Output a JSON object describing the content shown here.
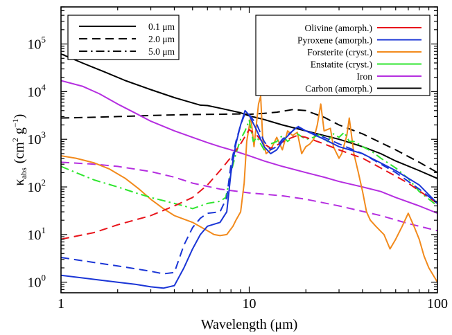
{
  "chart_data": {
    "type": "line",
    "xlabel": "Wavelength (μm)",
    "ylabel_main": "κ",
    "ylabel_sub": "abs",
    "ylabel_unit_pre": "(cm",
    "ylabel_unit_exp1": "2",
    "ylabel_unit_mid": " g",
    "ylabel_unit_exp2": "−1",
    "ylabel_unit_post": ")",
    "x_scale": "log",
    "y_scale": "log",
    "xlim": [
      1,
      100
    ],
    "ylim": [
      0.6,
      600000
    ],
    "x_ticks": [
      {
        "value": 1,
        "label": "1"
      },
      {
        "value": 10,
        "label": "10"
      },
      {
        "value": 100,
        "label": "100"
      }
    ],
    "y_ticks": [
      {
        "value": 1,
        "base": "10",
        "exp": "0"
      },
      {
        "value": 10,
        "base": "10",
        "exp": "1"
      },
      {
        "value": 100,
        "base": "10",
        "exp": "2"
      },
      {
        "value": 1000,
        "base": "10",
        "exp": "3"
      },
      {
        "value": 10000,
        "base": "10",
        "exp": "4"
      },
      {
        "value": 100000,
        "base": "10",
        "exp": "5"
      }
    ],
    "size_legend": [
      {
        "label": "0.1 μm",
        "dash": "solid"
      },
      {
        "label": "2.0 μm",
        "dash": "dashed"
      },
      {
        "label": "5.0 μm",
        "dash": "dashdot"
      }
    ],
    "material_legend": [
      {
        "label": "Olivine (amorph.)",
        "color": "#e8141b"
      },
      {
        "label": "Pyroxene (amorph.)",
        "color": "#1a35d6"
      },
      {
        "label": "Forsterite (cryst.)",
        "color": "#f28a1c"
      },
      {
        "label": "Enstatite (cryst.)",
        "color": "#2ee52e"
      },
      {
        "label": "Iron",
        "color": "#b52ee0"
      },
      {
        "label": "Carbon (amorph.)",
        "color": "#000000"
      }
    ],
    "series": [
      {
        "material": "Carbon (amorph.)",
        "size": "0.1 μm",
        "color": "#000000",
        "dash": "solid",
        "points": [
          [
            1,
            62000
          ],
          [
            1.3,
            40000
          ],
          [
            1.7,
            26000
          ],
          [
            2.2,
            17000
          ],
          [
            3,
            11000
          ],
          [
            4,
            7500
          ],
          [
            5,
            5800
          ],
          [
            5.5,
            5200
          ],
          [
            6,
            5100
          ],
          [
            7,
            4500
          ],
          [
            8,
            4000
          ],
          [
            9,
            3600
          ],
          [
            10,
            3100
          ],
          [
            12,
            2600
          ],
          [
            15,
            2000
          ],
          [
            20,
            1500
          ],
          [
            25,
            1200
          ],
          [
            30,
            1000
          ],
          [
            40,
            700
          ],
          [
            50,
            500
          ],
          [
            60,
            350
          ],
          [
            80,
            220
          ],
          [
            100,
            150
          ]
        ]
      },
      {
        "material": "Carbon (amorph.)",
        "size": "2.0 μm",
        "color": "#000000",
        "dash": "dashed",
        "points": [
          [
            1,
            2800
          ],
          [
            1.5,
            2900
          ],
          [
            2,
            3000
          ],
          [
            3,
            3150
          ],
          [
            4,
            3250
          ],
          [
            5,
            3300
          ],
          [
            7,
            3350
          ],
          [
            9,
            3400
          ],
          [
            10,
            3350
          ],
          [
            12,
            3500
          ],
          [
            14,
            3700
          ],
          [
            17,
            4200
          ],
          [
            20,
            4000
          ],
          [
            25,
            2900
          ],
          [
            30,
            2000
          ],
          [
            40,
            1300
          ],
          [
            60,
            600
          ],
          [
            80,
            330
          ],
          [
            100,
            200
          ]
        ]
      },
      {
        "material": "Iron",
        "size": "0.1 μm",
        "color": "#b52ee0",
        "dash": "solid",
        "points": [
          [
            1,
            17000
          ],
          [
            1.3,
            13000
          ],
          [
            1.6,
            9000
          ],
          [
            2,
            5500
          ],
          [
            2.5,
            3500
          ],
          [
            3,
            2400
          ],
          [
            4,
            1500
          ],
          [
            5,
            1100
          ],
          [
            6,
            850
          ],
          [
            7,
            700
          ],
          [
            8,
            600
          ],
          [
            10,
            450
          ],
          [
            12,
            350
          ],
          [
            15,
            270
          ],
          [
            20,
            200
          ],
          [
            25,
            160
          ],
          [
            30,
            130
          ],
          [
            40,
            100
          ],
          [
            50,
            80
          ],
          [
            60,
            60
          ],
          [
            80,
            40
          ],
          [
            100,
            28
          ]
        ]
      },
      {
        "material": "Iron",
        "size": "2.0 μm",
        "color": "#b52ee0",
        "dash": "dashed",
        "points": [
          [
            1,
            330
          ],
          [
            1.5,
            300
          ],
          [
            2,
            270
          ],
          [
            3,
            210
          ],
          [
            4,
            160
          ],
          [
            5,
            120
          ],
          [
            7,
            90
          ],
          [
            10,
            75
          ],
          [
            15,
            65
          ],
          [
            20,
            55
          ],
          [
            30,
            40
          ],
          [
            50,
            25
          ],
          [
            70,
            17
          ],
          [
            100,
            12
          ]
        ]
      },
      {
        "material": "Forsterite (cryst.)",
        "size": "0.1 μm",
        "color": "#f28a1c",
        "dash": "solid",
        "points": [
          [
            1,
            450
          ],
          [
            1.2,
            400
          ],
          [
            1.5,
            320
          ],
          [
            1.8,
            240
          ],
          [
            2.2,
            150
          ],
          [
            2.6,
            90
          ],
          [
            3,
            55
          ],
          [
            3.5,
            35
          ],
          [
            4,
            25
          ],
          [
            5,
            18
          ],
          [
            6,
            12
          ],
          [
            6.5,
            10
          ],
          [
            7,
            9.5
          ],
          [
            7.6,
            10
          ],
          [
            8.2,
            15
          ],
          [
            8.5,
            20
          ],
          [
            9,
            30
          ],
          [
            9.4,
            120
          ],
          [
            9.7,
            900
          ],
          [
            10.2,
            3000
          ],
          [
            10.6,
            700
          ],
          [
            11.2,
            5500
          ],
          [
            11.5,
            8000
          ],
          [
            11.8,
            1000
          ],
          [
            12.3,
            500
          ],
          [
            13,
            600
          ],
          [
            14,
            1100
          ],
          [
            15,
            600
          ],
          [
            16,
            1500
          ],
          [
            17,
            1200
          ],
          [
            18,
            1400
          ],
          [
            19,
            500
          ],
          [
            20,
            700
          ],
          [
            21,
            800
          ],
          [
            22,
            1000
          ],
          [
            23,
            2000
          ],
          [
            24,
            5500
          ],
          [
            25,
            1500
          ],
          [
            27,
            1700
          ],
          [
            28,
            700
          ],
          [
            30,
            400
          ],
          [
            31,
            500
          ],
          [
            33,
            1200
          ],
          [
            34,
            2800
          ],
          [
            36,
            500
          ],
          [
            38,
            200
          ],
          [
            40,
            80
          ],
          [
            42,
            30
          ],
          [
            44,
            20
          ],
          [
            47,
            15
          ],
          [
            52,
            10
          ],
          [
            56,
            5
          ],
          [
            60,
            8
          ],
          [
            65,
            15
          ],
          [
            70,
            28
          ],
          [
            75,
            15
          ],
          [
            80,
            8
          ],
          [
            85,
            3.5
          ],
          [
            90,
            2
          ],
          [
            100,
            1
          ]
        ]
      },
      {
        "material": "Enstatite (cryst.)",
        "size": "0.1 μm",
        "color": "#2ee52e",
        "dash": "dashdot",
        "points": [
          [
            1,
            270
          ],
          [
            1.2,
            200
          ],
          [
            1.5,
            140
          ],
          [
            2,
            100
          ],
          [
            2.5,
            75
          ],
          [
            3,
            60
          ],
          [
            4,
            45
          ],
          [
            4.5,
            40
          ],
          [
            5,
            35
          ],
          [
            6,
            45
          ],
          [
            7,
            50
          ],
          [
            7.5,
            60
          ],
          [
            8,
            200
          ],
          [
            8.5,
            500
          ],
          [
            9,
            1000
          ],
          [
            9.5,
            1500
          ],
          [
            10,
            2500
          ],
          [
            10.5,
            900
          ],
          [
            11,
            1100
          ],
          [
            12,
            600
          ],
          [
            13,
            800
          ],
          [
            14,
            900
          ],
          [
            15,
            1200
          ],
          [
            16,
            900
          ],
          [
            17,
            1100
          ],
          [
            18,
            1300
          ],
          [
            20,
            1000
          ],
          [
            22,
            1100
          ],
          [
            24,
            1300
          ],
          [
            26,
            900
          ],
          [
            28,
            1300
          ],
          [
            30,
            1100
          ],
          [
            32,
            1400
          ],
          [
            34,
            900
          ],
          [
            36,
            900
          ],
          [
            38,
            800
          ],
          [
            40,
            700
          ],
          [
            45,
            550
          ],
          [
            50,
            400
          ],
          [
            60,
            250
          ],
          [
            70,
            150
          ],
          [
            80,
            80
          ],
          [
            100,
            40
          ]
        ]
      },
      {
        "material": "Olivine (amorph.)",
        "size": "2.0 μm",
        "color": "#e8141b",
        "dash": "dashed",
        "points": [
          [
            1,
            8
          ],
          [
            1.5,
            11
          ],
          [
            2,
            16
          ],
          [
            3,
            25
          ],
          [
            4,
            40
          ],
          [
            5,
            60
          ],
          [
            6,
            110
          ],
          [
            7,
            220
          ],
          [
            8,
            420
          ],
          [
            9,
            800
          ],
          [
            10,
            1600
          ],
          [
            11,
            1200
          ],
          [
            12,
            800
          ],
          [
            13,
            650
          ],
          [
            14,
            750
          ],
          [
            16,
            1000
          ],
          [
            18,
            1200
          ],
          [
            20,
            1100
          ],
          [
            25,
            800
          ],
          [
            30,
            600
          ],
          [
            40,
            400
          ],
          [
            50,
            250
          ],
          [
            70,
            120
          ],
          [
            100,
            45
          ]
        ]
      },
      {
        "material": "Pyroxene (amorph.)",
        "size": "0.1 μm",
        "color": "#1a35d6",
        "dash": "solid",
        "points": [
          [
            1,
            1.4
          ],
          [
            1.5,
            1.15
          ],
          [
            2,
            1.0
          ],
          [
            2.5,
            0.9
          ],
          [
            3,
            0.8
          ],
          [
            3.5,
            0.75
          ],
          [
            4,
            0.85
          ],
          [
            4.5,
            2
          ],
          [
            5,
            5
          ],
          [
            5.5,
            10
          ],
          [
            6,
            15
          ],
          [
            7,
            18
          ],
          [
            7.6,
            30
          ],
          [
            8,
            200
          ],
          [
            8.5,
            800
          ],
          [
            9,
            2000
          ],
          [
            9.5,
            4000
          ],
          [
            10,
            3200
          ],
          [
            11,
            1500
          ],
          [
            12,
            700
          ],
          [
            13,
            500
          ],
          [
            14,
            600
          ],
          [
            15,
            900
          ],
          [
            17,
            1500
          ],
          [
            18,
            1800
          ],
          [
            20,
            1500
          ],
          [
            25,
            1000
          ],
          [
            30,
            700
          ],
          [
            40,
            500
          ],
          [
            60,
            220
          ],
          [
            80,
            110
          ],
          [
            100,
            45
          ]
        ]
      },
      {
        "material": "Pyroxene (amorph.)",
        "size": "2.0 μm",
        "color": "#1a35d6",
        "dash": "dashed",
        "points": [
          [
            1,
            3.3
          ],
          [
            1.5,
            2.6
          ],
          [
            2,
            2.2
          ],
          [
            3,
            1.7
          ],
          [
            3.5,
            1.5
          ],
          [
            4,
            1.6
          ],
          [
            4.5,
            6
          ],
          [
            5,
            14
          ],
          [
            5.5,
            22
          ],
          [
            6,
            28
          ],
          [
            7,
            30
          ],
          [
            7.6,
            60
          ],
          [
            8,
            300
          ],
          [
            8.5,
            900
          ],
          [
            9,
            2000
          ],
          [
            9.5,
            3500
          ],
          [
            10,
            3300
          ],
          [
            11,
            2000
          ],
          [
            12,
            900
          ],
          [
            13,
            600
          ],
          [
            14,
            700
          ],
          [
            15,
            1000
          ],
          [
            17,
            1500
          ],
          [
            18,
            1900
          ],
          [
            20,
            1500
          ],
          [
            25,
            1100
          ],
          [
            30,
            800
          ],
          [
            40,
            500
          ],
          [
            60,
            200
          ],
          [
            80,
            90
          ],
          [
            100,
            45
          ]
        ]
      }
    ]
  }
}
